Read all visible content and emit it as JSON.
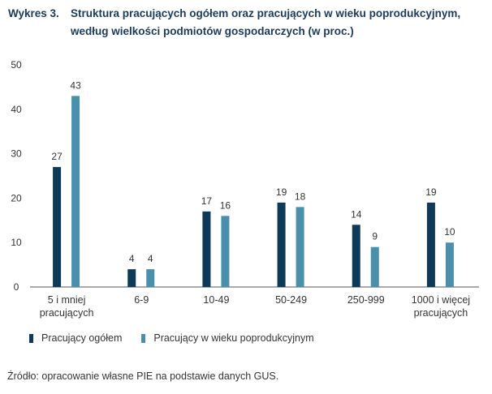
{
  "title_number": "Wykres 3.",
  "title_text": "Struktura pracujących ogółem oraz pracujących w wieku poprodukcyjnym, według wielkości podmiotów gospodarczych (w proc.)",
  "source": "Źródło: opracowanie własne PIE na podstawie danych GUS.",
  "chart_data": {
    "type": "bar",
    "title": "Struktura pracujących ogółem oraz pracujących w wieku poprodukcyjnym, według wielkości podmiotów gospodarczych (w proc.)",
    "categories": [
      [
        "5 i mniej",
        "pracujących"
      ],
      [
        "6-9"
      ],
      [
        "10-49"
      ],
      [
        "50-249"
      ],
      [
        "250-999"
      ],
      [
        "1000 i więcej",
        "pracujących"
      ]
    ],
    "series": [
      {
        "name": "Pracujący ogółem",
        "values": [
          27,
          4,
          17,
          19,
          14,
          19
        ],
        "color": "#0d3a59"
      },
      {
        "name": "Pracujący w wieku poprodukcyjnym",
        "values": [
          43,
          4,
          16,
          18,
          9,
          10
        ],
        "color": "#4a8fab"
      }
    ],
    "yticks": [
      0,
      10,
      20,
      30,
      40,
      50
    ],
    "ylim": [
      0,
      50
    ],
    "grid": false,
    "legend": "bottom-left",
    "data_labels": true
  }
}
